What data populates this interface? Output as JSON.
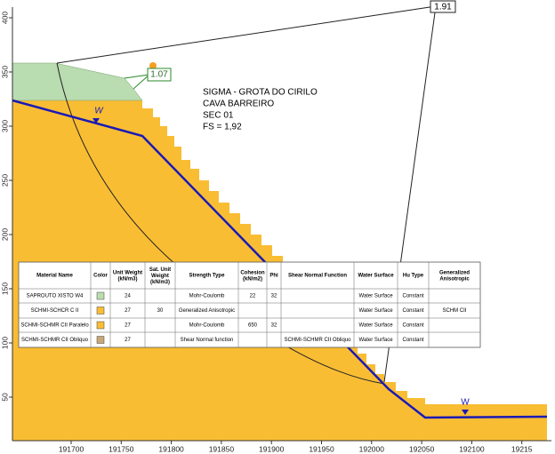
{
  "title_lines": [
    "SIGMA - GROTA DO CIRILO",
    "CAVA BARREIRO",
    "SEC 01",
    "FS = 1,92"
  ],
  "factor_labels": [
    "1.91",
    "1.07"
  ],
  "water_labels": [
    "W",
    "W"
  ],
  "x_axis": {
    "ticks": [
      "191700",
      "191750",
      "191800",
      "191850",
      "191900",
      "191950",
      "192000",
      "192050",
      "192100",
      "19215"
    ]
  },
  "y_axis": {
    "ticks": [
      "400",
      "350",
      "300",
      "250",
      "200",
      "150",
      "100",
      "50"
    ]
  },
  "table": {
    "header": [
      "Material Name",
      "Color",
      "Unit Weight (kN/m3)",
      "Sat. Unit Weight (kN/m3)",
      "Strength Type",
      "Cohesion (kN/m2)",
      "Phi",
      "Shear Normal Function",
      "Water Surface",
      "Hu Type",
      "Generalized Anisotropic"
    ],
    "rows": [
      [
        "SAPROUTO XISTO W4",
        null,
        "24",
        null,
        "Mohr-Coulomb",
        "22",
        "32",
        null,
        "Water Surface",
        "Constant",
        null
      ],
      [
        "SCHMI-SCHCR C II",
        null,
        "27",
        "30",
        "Generalized Anisotropic",
        null,
        null,
        null,
        "Water Surface",
        "Constant",
        "SCHM CII"
      ],
      [
        "SCHMI-SCHMR CII Paralelo",
        null,
        "27",
        null,
        "Mohr-Coulomb",
        "650",
        "32",
        null,
        "Water Surface",
        "Constant",
        null
      ],
      [
        "SCHMI-SCHMR CII Obliquo",
        null,
        "27",
        null,
        "Shear Normal function",
        null,
        null,
        "SCHMI-SCHMR CII Obliquo",
        "Water Surface",
        "Constant",
        null
      ]
    ]
  }
}
